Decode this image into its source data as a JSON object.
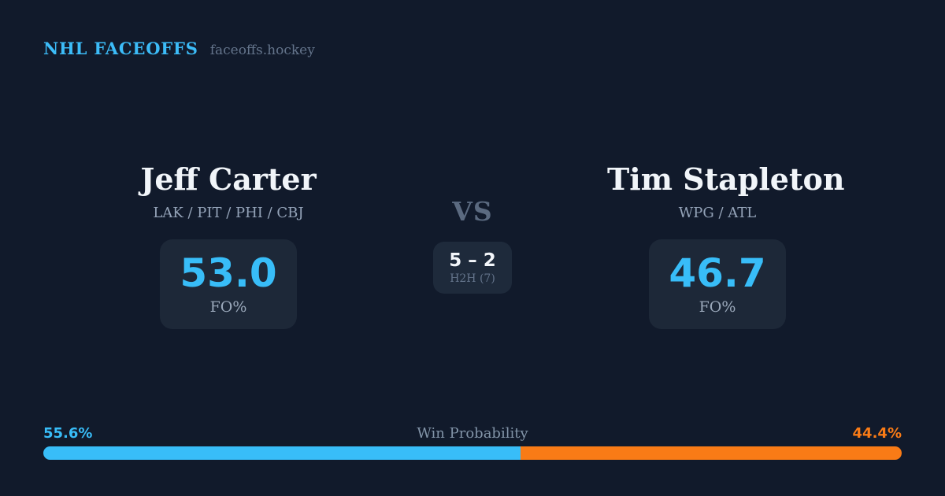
{
  "header": {
    "brand": "NHL FACEOFFS",
    "site": "faceoffs.hockey"
  },
  "players": {
    "left": {
      "name": "Jeff Carter",
      "teams": "LAK / PIT / PHI / CBJ",
      "fo_value": "53.0",
      "fo_label": "FO%"
    },
    "right": {
      "name": "Tim Stapleton",
      "teams": "WPG / ATL",
      "fo_value": "46.7",
      "fo_label": "FO%"
    }
  },
  "center": {
    "vs_label": "VS",
    "h2h_score": "5 – 2",
    "h2h_label": "H2H (7)"
  },
  "win_probability": {
    "label": "Win Probability",
    "left_pct_label": "55.6%",
    "right_pct_label": "44.4%",
    "left_value": 55.6,
    "right_value": 44.4
  },
  "colors": {
    "background": "#111a2b",
    "card": "#1d2838",
    "accent_blue": "#38bdf8",
    "accent_orange": "#f97b16",
    "text_primary": "#f1f5f9",
    "text_muted": "#94a3b8"
  }
}
